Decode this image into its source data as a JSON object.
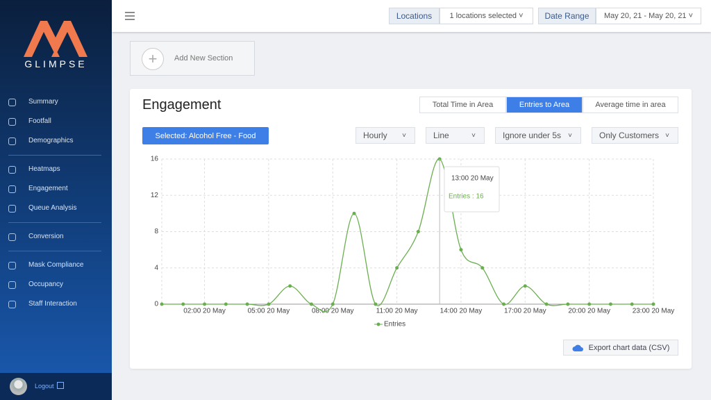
{
  "sidebar": {
    "logo": "GLIMPSE",
    "nav_groups": [
      [
        "Summary",
        "Footfall",
        "Demographics"
      ],
      [
        "Heatmaps",
        "Engagement",
        "Queue Analysis"
      ],
      [
        "Conversion"
      ],
      [
        "Mask Compliance",
        "Occupancy",
        "Staff Interaction"
      ]
    ],
    "logout": "Logout"
  },
  "topbar": {
    "filters": [
      {
        "label": "Locations",
        "value": "1 locations selected"
      },
      {
        "label": "Date Range",
        "value": "May 20, 21 - May 20, 21"
      }
    ]
  },
  "add_section": "Add New Section",
  "card": {
    "title": "Engagement",
    "tabs": [
      "Total Time in Area",
      "Entries to Area",
      "Average time in area"
    ],
    "active_tab": 1,
    "selection": "Selected: Alcohol Free - Food",
    "dropdowns": [
      "Hourly",
      "Line",
      "Ignore under 5s",
      "Only Customers"
    ],
    "export": "Export chart data (CSV)"
  },
  "chart_data": {
    "type": "line",
    "categories": [
      null,
      null,
      "02:00 20 May",
      null,
      null,
      "05:00 20 May",
      null,
      null,
      "08:00 20 May",
      null,
      null,
      "11:00 20 May",
      null,
      null,
      "14:00 20 May",
      null,
      null,
      "17:00 20 May",
      null,
      null,
      "20:00 20 May",
      null,
      null,
      "23:00 20 May"
    ],
    "series": [
      {
        "name": "Entries",
        "color": "#6aaf4f",
        "values": [
          0,
          0,
          0,
          0,
          0,
          0,
          2,
          0,
          0,
          10,
          0,
          4,
          8,
          16,
          6,
          4,
          0,
          2,
          0,
          0,
          0,
          0,
          0,
          0
        ]
      }
    ],
    "ylim": [
      0,
      16
    ],
    "yticks": [
      0,
      4,
      8,
      12,
      16
    ],
    "grid": true,
    "tooltip": {
      "title": "13:00 20 May",
      "text": "Entries : 16"
    }
  }
}
